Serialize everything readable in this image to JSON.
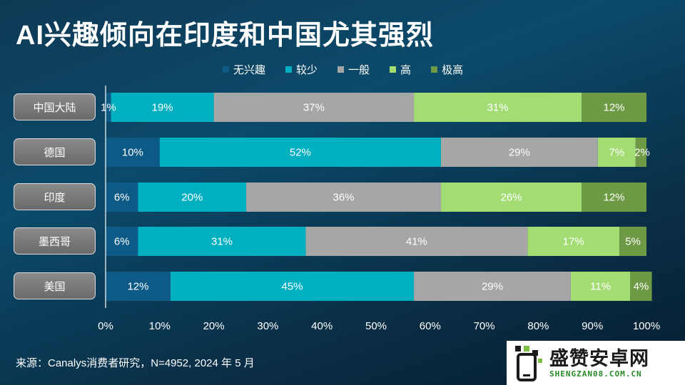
{
  "title": "AI兴趣倾向在印度和中国尤其强烈",
  "source": "来源：Canalys消费者研究，N=4952, 2024 年 5 月",
  "watermark": {
    "main": "盛赞安卓网",
    "sub": "SHENGZAN08.COM.CN"
  },
  "chart_data": {
    "type": "bar",
    "orientation": "horizontal",
    "stacked": true,
    "categories": [
      "中国大陆",
      "德国",
      "印度",
      "墨西哥",
      "美国"
    ],
    "series": [
      {
        "name": "无兴趣",
        "color": "#0d5a86",
        "values": [
          1,
          10,
          6,
          6,
          12
        ],
        "labels": [
          "1%",
          "10%",
          "6%",
          "6%",
          "12%"
        ]
      },
      {
        "name": "较少",
        "color": "#00b0c0",
        "values": [
          19,
          52,
          20,
          31,
          45
        ],
        "labels": [
          "19%",
          "52%",
          "20%",
          "31%",
          "45%"
        ]
      },
      {
        "name": "一般",
        "color": "#a6a6a6",
        "values": [
          37,
          29,
          36,
          41,
          29
        ],
        "labels": [
          "37%",
          "29%",
          "36%",
          "41%",
          "29%"
        ]
      },
      {
        "name": "高",
        "color": "#a4dc74",
        "values": [
          31,
          7,
          26,
          17,
          11
        ],
        "labels": [
          "31%",
          "7%",
          "26%",
          "17%",
          "11%"
        ]
      },
      {
        "name": "极高",
        "color": "#6f9a45",
        "values": [
          12,
          2,
          12,
          5,
          4
        ],
        "labels": [
          "12%",
          "2%",
          "12%",
          "5%",
          "4%"
        ]
      }
    ],
    "xlim": [
      0,
      100
    ],
    "xticks": [
      "0%",
      "10%",
      "20%",
      "30%",
      "40%",
      "50%",
      "60%",
      "70%",
      "80%",
      "90%",
      "100%"
    ],
    "legend_position": "top",
    "grid": false
  }
}
